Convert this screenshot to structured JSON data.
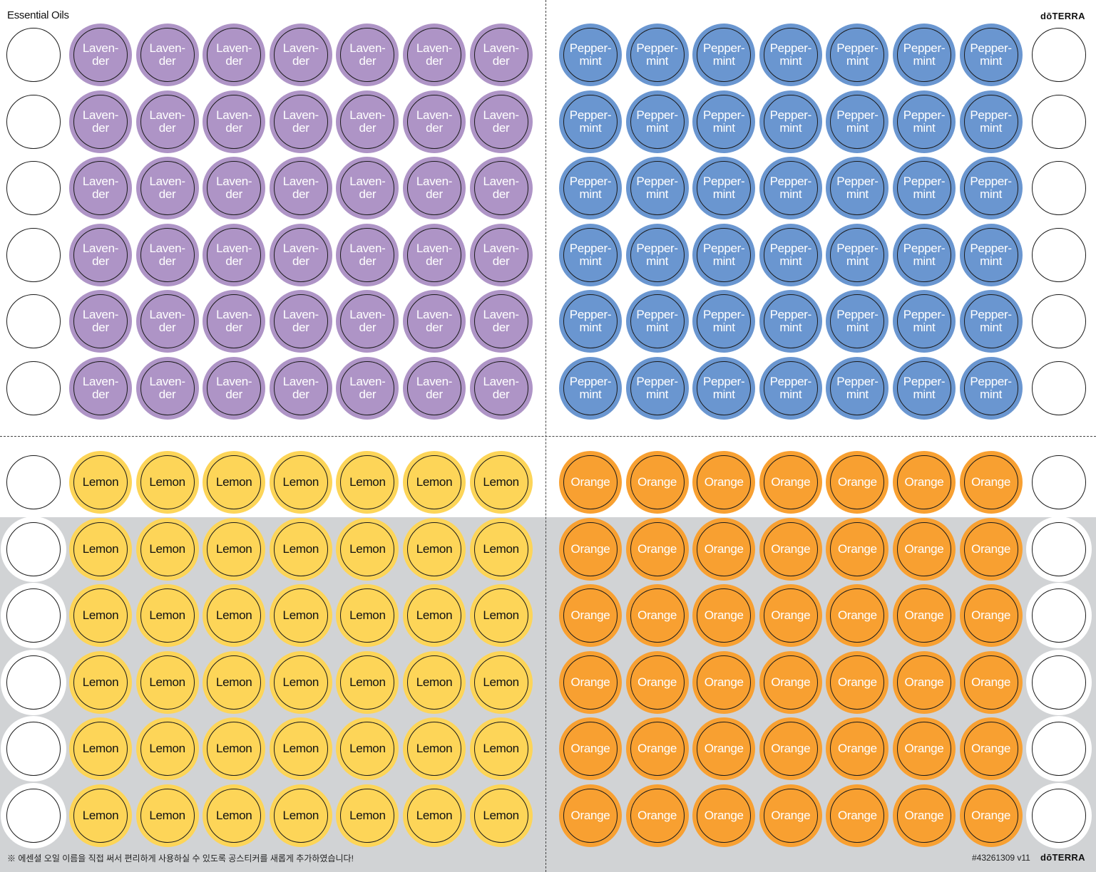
{
  "header": {
    "title": "Essential Oils",
    "brand": "dōTERRA"
  },
  "footer": {
    "note": "※ 에센셜 오일 이름을 직접 써서 편리하게 사용하실 수 있도록 공스티커를 새롭게 추가하였습니다!",
    "code": "#43261309 v11",
    "brand": "dōTERRA"
  },
  "colors": {
    "lavender": "#ae94c6",
    "peppermint": "#6a96d0",
    "lemon": "#fdd558",
    "orange": "#f8a031",
    "band": "#d1d3d5"
  },
  "quadrants": [
    {
      "name": "lavender",
      "label": "Laven-\nder",
      "color": "#ae94c6",
      "text_color": "#ffffff",
      "rows": 6,
      "cols": 7
    },
    {
      "name": "peppermint",
      "label": "Pepper-\nmint",
      "color": "#6a96d0",
      "text_color": "#ffffff",
      "rows": 6,
      "cols": 7
    },
    {
      "name": "lemon",
      "label": "Lemon",
      "color": "#fdd558",
      "text_color": "#111111",
      "rows": 6,
      "cols": 7
    },
    {
      "name": "orange",
      "label": "Orange",
      "color": "#f8a031",
      "text_color": "#ffffff",
      "rows": 6,
      "cols": 7
    }
  ]
}
